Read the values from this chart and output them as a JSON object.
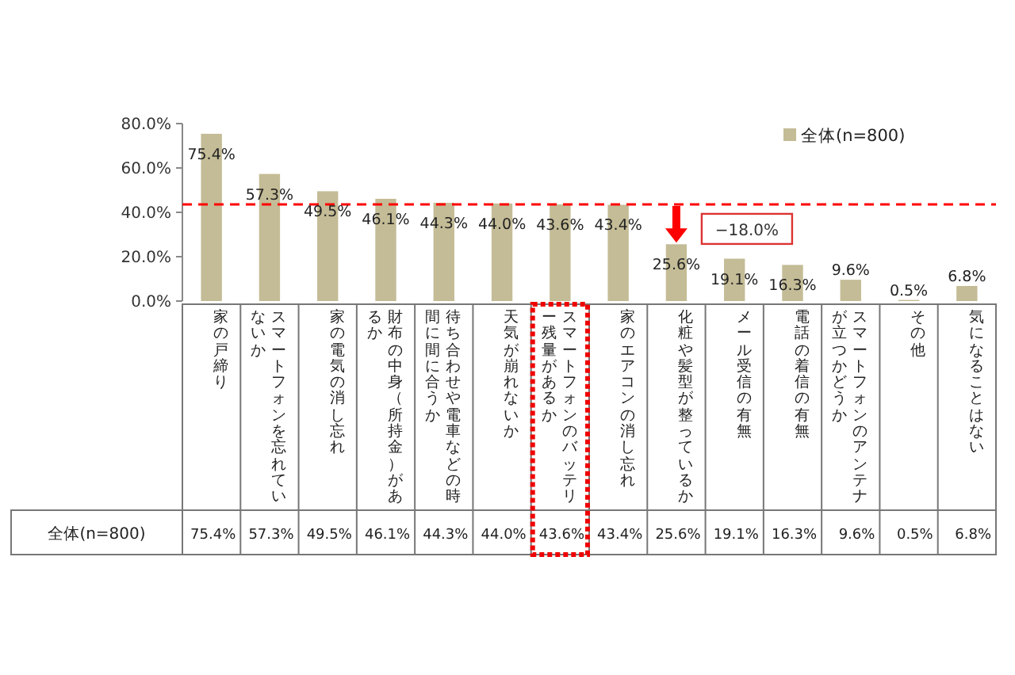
{
  "chart_data": {
    "type": "bar",
    "categories": [
      "家の戸締り",
      "スマートフォンを忘れていないか",
      "家の電気の消し忘れ",
      "財布の中身（所持金）があるか",
      "待ち合わせや電車などの時間に間に合うか",
      "天気が崩れないか",
      "スマートフォンのバッテリー残量があるか",
      "家のエアコンの消し忘れ",
      "化粧や髪型が整っているか",
      "メール受信の有無",
      "電話の着信の有無",
      "スマートフォンのアンテナが立つかどうか",
      "その他",
      "気になることはない"
    ],
    "series": [
      {
        "name": "全体(n=800)",
        "color": "#c4bc96",
        "values": [
          75.4,
          57.3,
          49.5,
          46.1,
          44.3,
          44.0,
          43.6,
          43.4,
          25.6,
          19.1,
          16.3,
          9.6,
          0.5,
          6.8
        ],
        "value_labels": [
          "75.4%",
          "57.3%",
          "49.5%",
          "46.1%",
          "44.3%",
          "44.0%",
          "43.6%",
          "43.4%",
          "25.6%",
          "19.1%",
          "16.3%",
          "9.6%",
          "0.5%",
          "6.8%"
        ]
      }
    ],
    "ylim": [
      0,
      80
    ],
    "yticks": [
      {
        "value": 0,
        "label": "0.0%"
      },
      {
        "value": 20,
        "label": "20.0%"
      },
      {
        "value": 40,
        "label": "40.0%"
      },
      {
        "value": 60,
        "label": "60.0%"
      },
      {
        "value": 80,
        "label": "80.0%"
      }
    ],
    "ref_lines": [
      {
        "axis": "y",
        "value": 43.6,
        "color": "#ff0000",
        "line_style": "dashed"
      }
    ],
    "annotations": [
      {
        "text": "−18.0%",
        "x": "化粧や髪型が整っているか",
        "y": 25.6
      }
    ],
    "legend": "top right",
    "grid": false
  }
}
